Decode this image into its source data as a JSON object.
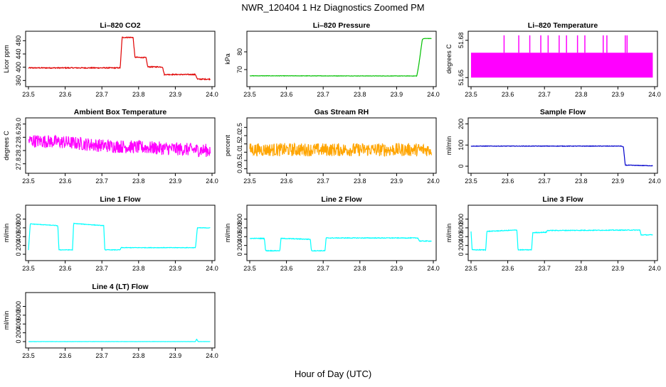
{
  "figure": {
    "title": "NWR_120404  1 Hz Diagnostics Zoomed PM",
    "xlabel": "Hour of Day (UTC)"
  },
  "chart_data": [
    {
      "type": "line",
      "title": "Li–820 CO2",
      "ylabel": "Licor ppm",
      "color": "#e00000",
      "xlim": [
        23.5,
        24.0
      ],
      "ylim": [
        350,
        500
      ],
      "xticks": [
        "23.5",
        "23.6",
        "23.7",
        "23.8",
        "23.9",
        "24.0"
      ],
      "yticks": [
        360,
        400,
        440,
        480
      ],
      "noise": 1.5,
      "spikes": 0,
      "x": [
        23.5,
        23.6,
        23.7,
        23.75,
        23.755,
        23.785,
        23.79,
        23.82,
        23.825,
        23.865,
        23.87,
        23.955,
        23.96,
        23.995
      ],
      "y": [
        398,
        398,
        398,
        398,
        490,
        490,
        430,
        429,
        401,
        401,
        378,
        378,
        364,
        364
      ]
    },
    {
      "type": "line",
      "title": "Li–820 Pressure",
      "ylabel": "kPa",
      "color": "#00c000",
      "xlim": [
        23.5,
        24.0
      ],
      "ylim": [
        62,
        90
      ],
      "xticks": [
        "23.5",
        "23.6",
        "23.7",
        "23.8",
        "23.9",
        "24.0"
      ],
      "yticks": [
        70,
        80
      ],
      "noise": 0.1,
      "spikes": 0,
      "x": [
        23.5,
        23.95,
        23.955,
        23.96,
        23.97,
        23.975,
        23.995
      ],
      "y": [
        66.5,
        66.4,
        66.4,
        72,
        87,
        87.5,
        87.5
      ]
    },
    {
      "type": "line",
      "title": "Li–820 Temperature",
      "ylabel": "degrees C",
      "color": "#ff00ff",
      "xlim": [
        23.5,
        24.0
      ],
      "ylim": [
        51.645,
        51.685
      ],
      "xticks": [
        "23.5",
        "23.6",
        "23.7",
        "23.8",
        "23.9",
        "24.0"
      ],
      "yticks": [
        "51.65",
        "51.68"
      ],
      "band": [
        51.65,
        51.67
      ],
      "spike_top": 51.684,
      "spike_x": [
        23.59,
        23.63,
        23.66,
        23.69,
        23.71,
        23.74,
        23.76,
        23.79,
        23.81,
        23.86,
        23.87,
        23.92,
        23.925
      ],
      "x": [
        23.5,
        23.995
      ],
      "y": [
        51.66,
        51.66
      ]
    },
    {
      "type": "line",
      "title": "Ambient Box Temperature",
      "ylabel": "degrees C",
      "color": "#ff00ff",
      "xlim": [
        23.5,
        24.0
      ],
      "ylim": [
        27.6,
        29.1
      ],
      "xticks": [
        "23.5",
        "23.6",
        "23.7",
        "23.8",
        "23.9",
        "24.0"
      ],
      "yticks": [
        "27.8",
        "28.2",
        "28.6",
        "29.0"
      ],
      "noise": 0.2,
      "spikes": 0,
      "x": [
        23.5,
        23.6,
        23.7,
        23.8,
        23.9,
        23.995
      ],
      "y": [
        28.5,
        28.45,
        28.35,
        28.3,
        28.25,
        28.2
      ]
    },
    {
      "type": "line",
      "title": "Gas Stream RH",
      "ylabel": "percent",
      "color": "#ffa500",
      "xlim": [
        23.5,
        24.0
      ],
      "ylim": [
        -0.1,
        2.9
      ],
      "xticks": [
        "23.5",
        "23.6",
        "23.7",
        "23.8",
        "23.9",
        "24.0"
      ],
      "yticks": [
        "0.0",
        "0.5",
        "1.0",
        "1.5",
        "2.0",
        "2.5"
      ],
      "noise": 0.4,
      "spikes": 0,
      "x": [
        23.5,
        23.995
      ],
      "y": [
        1.15,
        1.15
      ]
    },
    {
      "type": "line",
      "title": "Sample Flow",
      "ylabel": "ml/min",
      "color": "#0000cc",
      "xlim": [
        23.5,
        24.0
      ],
      "ylim": [
        -20,
        215
      ],
      "xticks": [
        "23.5",
        "23.6",
        "23.7",
        "23.8",
        "23.9",
        "24.0"
      ],
      "yticks": [
        0,
        100,
        200
      ],
      "noise": 1.2,
      "spikes": 0,
      "x": [
        23.5,
        23.91,
        23.915,
        23.92,
        23.995
      ],
      "y": [
        95,
        95,
        90,
        5,
        2
      ]
    },
    {
      "type": "line",
      "title": "Line 1 Flow",
      "ylabel": "ml/min",
      "color": "#00ffff",
      "xlim": [
        23.5,
        24.0
      ],
      "ylim": [
        -80,
        1050
      ],
      "xticks": [
        "23.5",
        "23.6",
        "23.7",
        "23.8",
        "23.9",
        "24.0"
      ],
      "yticks": [
        0,
        200,
        400,
        600,
        800
      ],
      "noise": 6,
      "spikes": 0,
      "x": [
        23.5,
        23.505,
        23.58,
        23.583,
        23.62,
        23.623,
        23.705,
        23.708,
        23.75,
        23.752,
        23.955,
        23.96,
        23.995
      ],
      "y": [
        100,
        690,
        650,
        100,
        100,
        700,
        650,
        100,
        100,
        150,
        150,
        600,
        600
      ]
    },
    {
      "type": "line",
      "title": "Line 2 Flow",
      "ylabel": "ml/min",
      "color": "#00ffff",
      "xlim": [
        23.5,
        24.0
      ],
      "ylim": [
        -80,
        1050
      ],
      "xticks": [
        "23.5",
        "23.6",
        "23.7",
        "23.8",
        "23.9",
        "24.0"
      ],
      "yticks": [
        0,
        200,
        400,
        600,
        800
      ],
      "noise": 8,
      "spikes": 0,
      "x": [
        23.5,
        23.54,
        23.543,
        23.582,
        23.585,
        23.665,
        23.668,
        23.705,
        23.708,
        23.958,
        23.962,
        23.995
      ],
      "y": [
        360,
        360,
        80,
        80,
        360,
        340,
        80,
        80,
        370,
        370,
        300,
        300
      ]
    },
    {
      "type": "line",
      "title": "Line 3 Flow",
      "ylabel": "ml/min",
      "color": "#00ffff",
      "xlim": [
        23.5,
        24.0
      ],
      "ylim": [
        -80,
        1050
      ],
      "xticks": [
        "23.5",
        "23.6",
        "23.7",
        "23.8",
        "23.9",
        "24.0"
      ],
      "yticks": [
        0,
        200,
        400,
        600,
        800
      ],
      "noise": 8,
      "spikes": 0,
      "x": [
        23.5,
        23.503,
        23.54,
        23.543,
        23.625,
        23.628,
        23.665,
        23.668,
        23.705,
        23.708,
        23.96,
        23.963,
        23.995
      ],
      "y": [
        520,
        100,
        100,
        520,
        550,
        100,
        100,
        490,
        500,
        540,
        550,
        440,
        440
      ]
    },
    {
      "type": "line",
      "title": "Line 4 (LT) Flow",
      "ylabel": "ml/min",
      "color": "#00ffff",
      "xlim": [
        23.5,
        24.0
      ],
      "ylim": [
        -80,
        1050
      ],
      "xticks": [
        "23.5",
        "23.6",
        "23.7",
        "23.8",
        "23.9",
        "24.0"
      ],
      "yticks": [
        0,
        200,
        400,
        600,
        800
      ],
      "noise": 2,
      "spikes": 0,
      "x": [
        23.5,
        23.955,
        23.958,
        23.962,
        23.995
      ],
      "y": [
        0,
        0,
        60,
        0,
        0
      ]
    }
  ]
}
